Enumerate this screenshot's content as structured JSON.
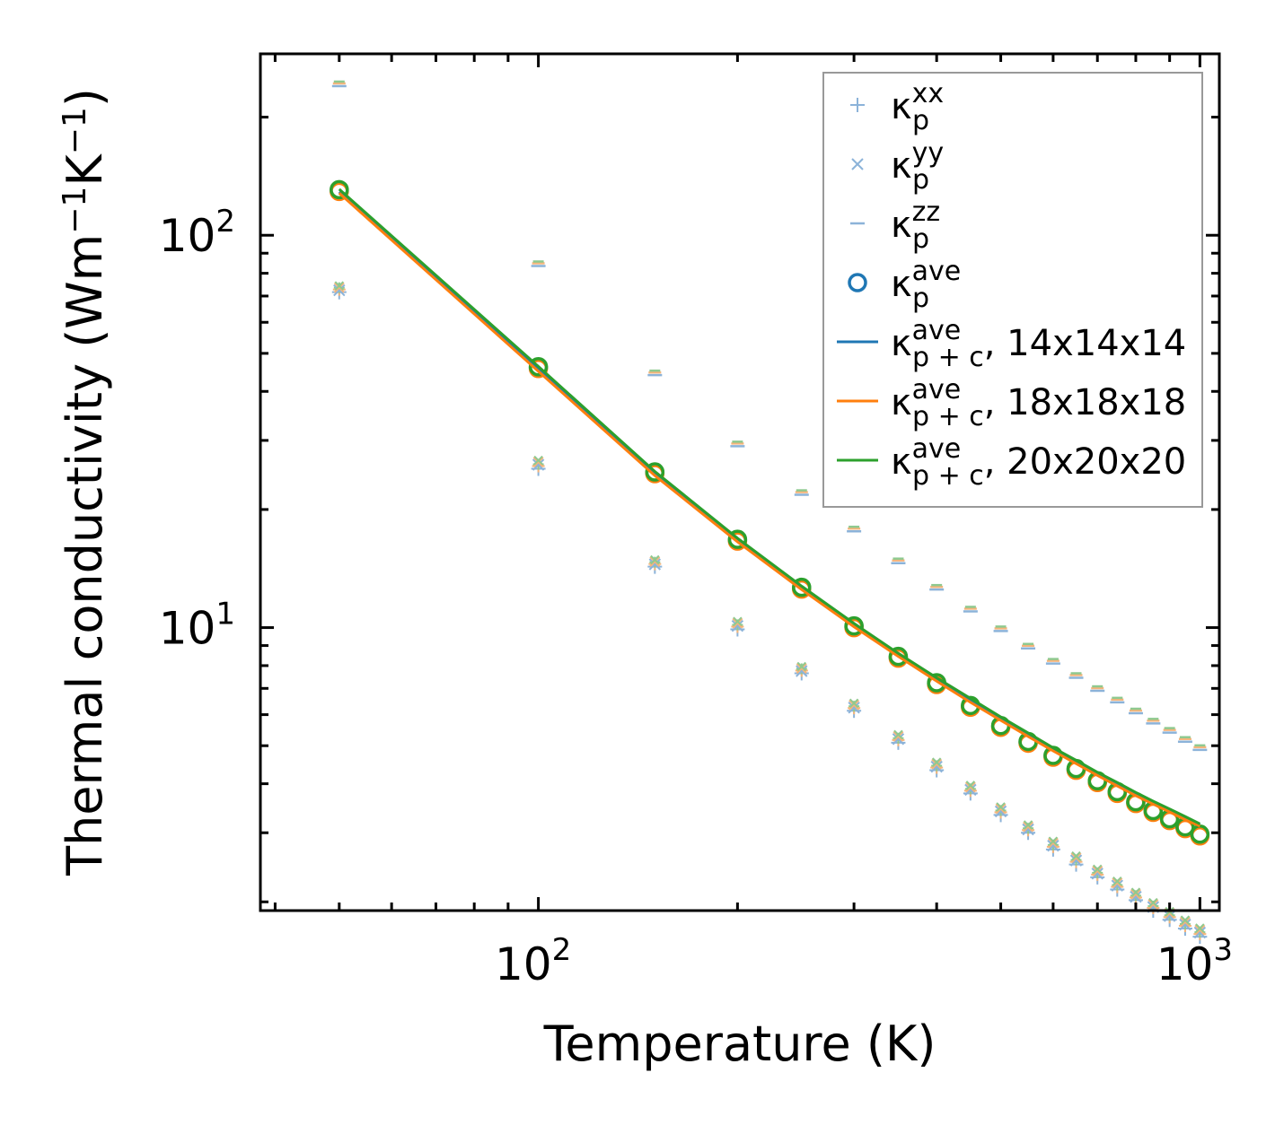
{
  "chart_data": {
    "type": "scatter",
    "title": "",
    "xlabel": "Temperature (K)",
    "ylabel_text": "Thermal conductivity (Wm",
    "ylabel_sup1": "−1",
    "ylabel_mid": "K",
    "ylabel_sup2": "−1",
    "ylabel_end": ")",
    "xscale": "log",
    "yscale": "log",
    "xlim": [
      38,
      1070
    ],
    "ylim": [
      1.9,
      290
    ],
    "x_ticks": [
      {
        "base": "10",
        "exp": "2",
        "value": 100
      },
      {
        "base": "10",
        "exp": "3",
        "value": 1000
      }
    ],
    "y_ticks": [
      {
        "base": "10",
        "exp": "1",
        "value": 10
      },
      {
        "base": "10",
        "exp": "2",
        "value": 100
      }
    ],
    "legend_position": "top-right",
    "temperatures": [
      50,
      100,
      150,
      200,
      250,
      300,
      350,
      400,
      450,
      500,
      550,
      600,
      650,
      700,
      750,
      800,
      850,
      900,
      950,
      1000
    ],
    "series": [
      {
        "key": "kxx",
        "name": "κ",
        "sub": "p",
        "sup": "xx",
        "marker": "plus",
        "color": "#8cb3d9",
        "values": [
          71.6,
          25.4,
          14.3,
          9.9,
          7.65,
          6.14,
          5.09,
          4.33,
          3.78,
          3.33,
          3.0,
          2.72,
          2.49,
          2.31,
          2.15,
          2.02,
          1.9,
          1.8,
          1.71,
          1.63
        ]
      },
      {
        "key": "kyy",
        "name": "κ",
        "sub": "p",
        "sup": "yy",
        "marker": "cross",
        "color": "#8cb3d9",
        "values": [
          72.4,
          26.0,
          14.5,
          10.1,
          7.75,
          6.25,
          5.2,
          4.42,
          3.86,
          3.4,
          3.06,
          2.78,
          2.55,
          2.36,
          2.2,
          2.06,
          1.94,
          1.84,
          1.75,
          1.67
        ]
      },
      {
        "key": "kzz",
        "name": "κ",
        "sub": "p",
        "sup": "zz",
        "marker": "dash",
        "color": "#8cb3d9",
        "values": [
          240,
          83.5,
          44.0,
          29.0,
          21.8,
          17.6,
          14.6,
          12.5,
          11.0,
          9.8,
          8.85,
          8.1,
          7.45,
          6.9,
          6.45,
          6.05,
          5.7,
          5.4,
          5.12,
          4.88
        ]
      },
      {
        "key": "kave",
        "name": "κ",
        "sub": "p",
        "sup": "ave",
        "marker": "circle",
        "color": "#1f77b4",
        "values": [
          130,
          46.0,
          24.8,
          16.7,
          12.6,
          10.05,
          8.4,
          7.2,
          6.3,
          5.6,
          5.1,
          4.7,
          4.35,
          4.05,
          3.8,
          3.58,
          3.4,
          3.24,
          3.09,
          2.96
        ]
      },
      {
        "key": "kpc14",
        "name": "κ",
        "sub": "p + c",
        "sup": "ave",
        "suffix": ", 14x14x14",
        "marker": "line",
        "color": "#1f77b4",
        "values": [
          129,
          45.5,
          24.8,
          16.8,
          12.7,
          10.2,
          8.55,
          7.4,
          6.55,
          5.88,
          5.35,
          4.9,
          4.55,
          4.25,
          4.0,
          3.77,
          3.58,
          3.42,
          3.27,
          3.14
        ]
      },
      {
        "key": "kpc18",
        "name": "κ",
        "sub": "p + c",
        "sup": "ave",
        "suffix": ", 18x18x18",
        "marker": "line",
        "color": "#ff7f0e",
        "values": [
          128,
          45.0,
          24.4,
          16.55,
          12.5,
          10.05,
          8.45,
          7.3,
          6.45,
          5.8,
          5.28,
          4.85,
          4.5,
          4.2,
          3.95,
          3.73,
          3.55,
          3.39,
          3.24,
          3.12
        ]
      },
      {
        "key": "kpc20",
        "name": "κ",
        "sub": "p + c",
        "sup": "ave",
        "suffix": ", 20x20x20",
        "marker": "line",
        "color": "#2ca02c",
        "values": [
          131,
          46.3,
          25.0,
          16.9,
          12.75,
          10.25,
          8.6,
          7.45,
          6.6,
          5.92,
          5.39,
          4.94,
          4.59,
          4.28,
          4.03,
          3.8,
          3.61,
          3.45,
          3.3,
          3.16
        ]
      }
    ],
    "overlay_markers": {
      "note_color_orange": "#ff7f0e",
      "note_color_green": "#2ca02c"
    }
  }
}
